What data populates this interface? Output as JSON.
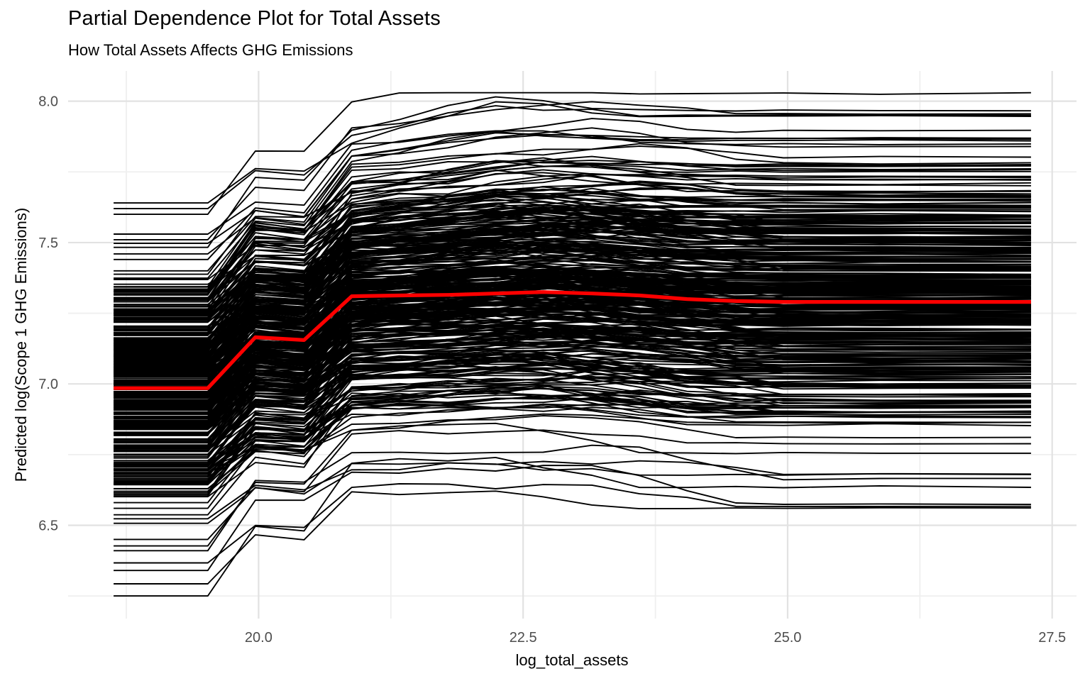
{
  "header": {
    "title": "Partial Dependence Plot for Total Assets",
    "subtitle": "How Total Assets Affects GHG Emissions"
  },
  "axes": {
    "x": {
      "title": "log_total_assets",
      "tick_labels": [
        "20.0",
        "22.5",
        "25.0",
        "27.5"
      ],
      "tick_values": [
        20.0,
        22.5,
        25.0,
        27.5
      ],
      "minor_values": [
        18.75,
        21.25,
        23.75,
        26.25
      ]
    },
    "y": {
      "title": "Predicted log(Scope 1 GHG Emissions)",
      "tick_labels": [
        "6.5",
        "7.0",
        "7.5",
        "8.0"
      ],
      "tick_values": [
        6.5,
        7.0,
        7.5,
        8.0
      ],
      "minor_values": [
        6.25,
        6.75,
        7.25,
        7.75
      ]
    }
  },
  "chart_data": {
    "type": "line",
    "subtype": "ice-pdp",
    "title": "Partial Dependence Plot for Total Assets",
    "subtitle": "How Total Assets Affects GHG Emissions",
    "xlabel": "log_total_assets",
    "ylabel": "Predicted log(Scope 1 GHG Emissions)",
    "xlim": [
      18.2,
      27.73
    ],
    "ylim": [
      6.17,
      8.107
    ],
    "grid": "on",
    "legend": "none",
    "x_knots": [
      18.63,
      19.52,
      19.97,
      20.43,
      20.88,
      21.33,
      21.79,
      22.24,
      22.69,
      23.15,
      23.6,
      24.05,
      24.51,
      24.96,
      25.87,
      27.3
    ],
    "pdp_series": {
      "name": "average_pdp",
      "values": [
        6.985,
        6.985,
        7.165,
        7.155,
        7.31,
        7.313,
        7.315,
        7.32,
        7.325,
        7.32,
        7.313,
        7.3,
        7.293,
        7.29,
        7.29,
        7.29
      ]
    },
    "ice_series": {
      "name": "ice_curves",
      "count_dense": 365,
      "dense_offset_range": [
        -0.39,
        0.398
      ],
      "tail_offsets_top": [
        0.655,
        0.635,
        0.615,
        0.545,
        0.525,
        0.512,
        0.498,
        0.475,
        0.455,
        0.415,
        0.403
      ],
      "tail_offsets_bottom": [
        -0.405,
        -0.425,
        -0.448,
        -0.462,
        -0.478,
        -0.535,
        -0.558,
        -0.575,
        -0.618,
        -0.645,
        -0.692,
        -0.735
      ],
      "seed": 11,
      "first_jump": 0.18,
      "mid_dip": 0.012,
      "second_jump": 0.155,
      "peak_gain_base": 0.025,
      "peak_gain_slope": 0.085,
      "decline_base": 0.012,
      "decline_rand": 0.06,
      "decline_low_extra": 0.07,
      "knot_jitter": 0.024,
      "value_clamp": [
        6.235,
        8.03
      ]
    },
    "colors": {
      "ice_line": "#000000",
      "pdp_line": "#FF0000",
      "grid_major": "#E2E2E2",
      "grid_minor": "#EFEFEF",
      "tick_text": "#4D4D4D",
      "background": "#FFFFFF"
    }
  }
}
